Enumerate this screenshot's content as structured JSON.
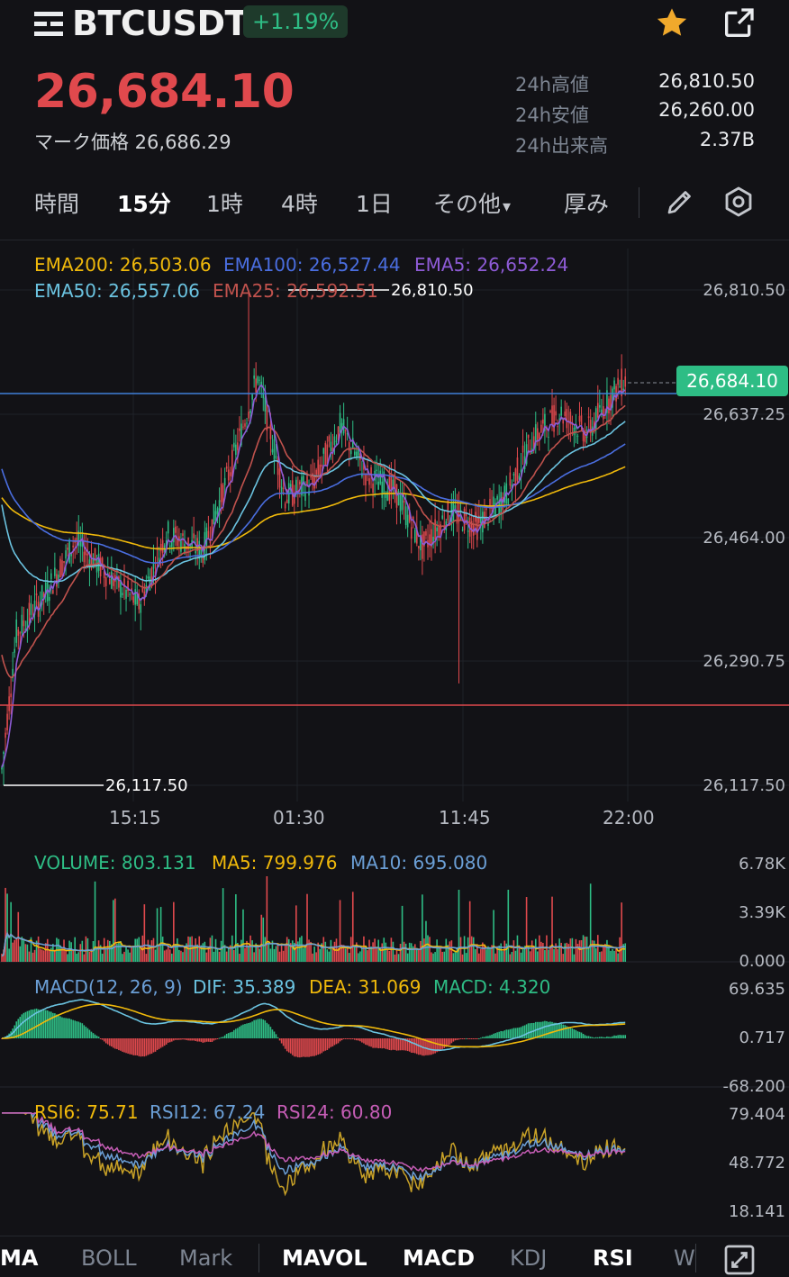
{
  "header": {
    "symbol": "BTCUSDT",
    "change": "+1.19%",
    "price": "26,684.10",
    "mark_price": "マーク価格 26,686.29",
    "stats": [
      {
        "label": "24h高値",
        "value": "26,810.50"
      },
      {
        "label": "24h安値",
        "value": "26,260.00"
      },
      {
        "label": "24h出来高",
        "value": "2.37B"
      }
    ]
  },
  "timeframes": [
    "時間",
    "15分",
    "1時",
    "4時",
    "1日",
    "その他",
    "厚み"
  ],
  "active_timeframe": "15分",
  "more_caret": "▾",
  "ema_legend": {
    "ema200": "EMA200: 26,503.06",
    "ema100": "EMA100: 26,527.44",
    "ema5": "EMA5: 26,652.24",
    "ema50": "EMA50: 26,557.06",
    "ema25": "EMA25: 26,592.51"
  },
  "price_axis": [
    "26,810.50",
    "26,637.25",
    "26,464.00",
    "26,290.75",
    "26,117.50"
  ],
  "high_marker": "26,810.50",
  "low_marker": "26,117.50",
  "current_price_tag": "26,684.10",
  "time_axis": [
    "15:15",
    "01:30",
    "11:45",
    "22:00"
  ],
  "volume": {
    "legend": {
      "volume": "VOLUME: 803.131",
      "ma5": "MA5: 799.976",
      "ma10": "MA10: 695.080"
    },
    "axis": [
      "6.78K",
      "3.39K",
      "0.000"
    ]
  },
  "macd": {
    "legend": {
      "name": "MACD(12, 26, 9)",
      "dif": "DIF: 35.389",
      "dea": "DEA: 31.069",
      "macd": "MACD: 4.320"
    },
    "axis": [
      "69.635",
      "0.717",
      "-68.200"
    ]
  },
  "rsi": {
    "legend": {
      "rsi6": "RSI6: 75.71",
      "rsi12": "RSI12: 67.24",
      "rsi24": "RSI24: 60.80"
    },
    "axis": [
      "79.404",
      "48.772",
      "18.141"
    ]
  },
  "bottom_tabs": [
    "MA",
    "BOLL",
    "Mark",
    "MAVOL",
    "MACD",
    "KDJ",
    "RSI",
    "W"
  ],
  "active_bottom_tabs": [
    "MAVOL",
    "MACD",
    "RSI"
  ],
  "colors": {
    "up": "#2ebd85",
    "down": "#e0494d",
    "ema200": "#f0b90b",
    "ema100": "#4a6ee0",
    "ema5": "#8e5bd6",
    "ema50": "#6bc3e0",
    "ema25": "#c0524d",
    "price_line": "#3f7fd9",
    "low_line": "#e0494d"
  }
}
